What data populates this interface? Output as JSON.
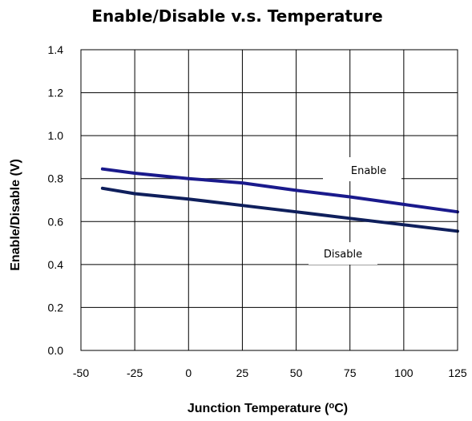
{
  "chart_data": {
    "type": "line",
    "title": "Enable/Disable v.s. Temperature",
    "xlabel": "Junction Temperature (",
    "xlabel_sup": "o",
    "xlabel_tail": "C)",
    "ylabel": "Enable/Disable (V)",
    "xlim": [
      -50,
      125
    ],
    "ylim": [
      0,
      1.4
    ],
    "xticks": [
      "-50",
      "-25",
      "0",
      "25",
      "50",
      "75",
      "100",
      "125"
    ],
    "yticks": [
      "0.0",
      "0.2",
      "0.4",
      "0.6",
      "0.8",
      "1.0",
      "1.2",
      "1.4"
    ],
    "grid": true,
    "legend": "none",
    "series": [
      {
        "name": "Enable",
        "color": "#1a1a8c",
        "x": [
          -40,
          -25,
          0,
          25,
          50,
          75,
          100,
          125
        ],
        "y": [
          0.845,
          0.825,
          0.8,
          0.78,
          0.745,
          0.715,
          0.68,
          0.645
        ]
      },
      {
        "name": "Disable",
        "color": "#0f1f5c",
        "x": [
          -40,
          -25,
          0,
          25,
          50,
          75,
          100,
          125
        ],
        "y": [
          0.755,
          0.73,
          0.705,
          0.675,
          0.645,
          0.615,
          0.585,
          0.555
        ]
      }
    ]
  }
}
